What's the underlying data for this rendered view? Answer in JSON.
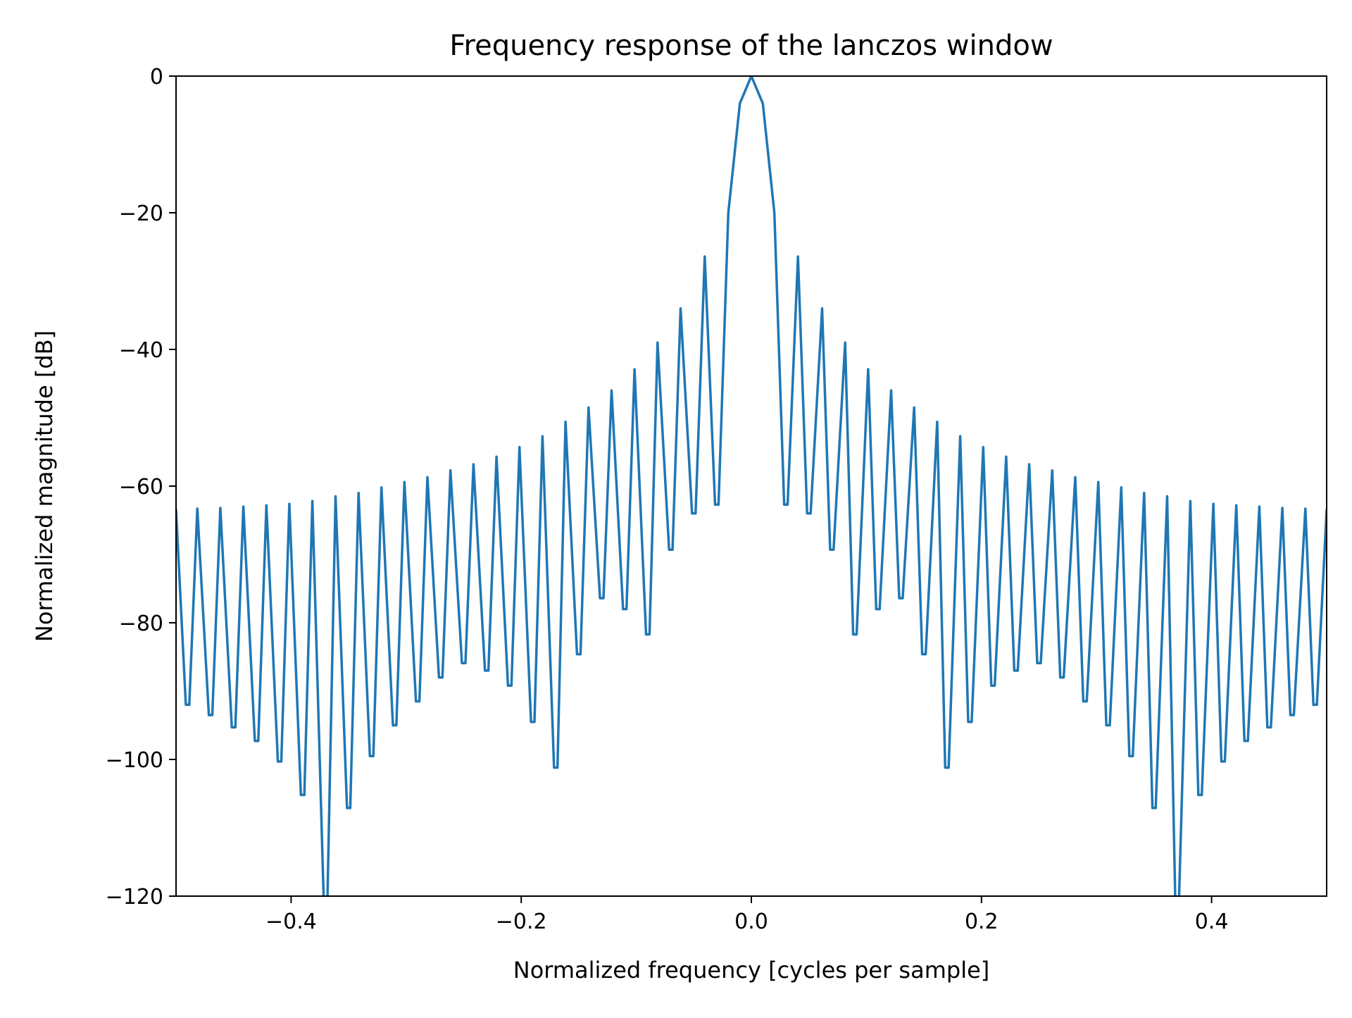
{
  "chart_data": {
    "type": "line",
    "title": "Frequency response of the lanczos window",
    "xlabel": "Normalized frequency [cycles per sample]",
    "ylabel": "Normalized magnitude [dB]",
    "xlim": [
      -0.5,
      0.5
    ],
    "ylim": [
      -120,
      0
    ],
    "xticks": [
      -0.4,
      -0.2,
      0.0,
      0.2,
      0.4
    ],
    "xtick_labels": [
      "−0.4",
      "−0.2",
      "0.0",
      "0.2",
      "0.4"
    ],
    "yticks": [
      0,
      -20,
      -40,
      -60,
      -80,
      -100,
      -120
    ],
    "ytick_labels": [
      "0",
      "−20",
      "−40",
      "−60",
      "−80",
      "−100",
      "−120"
    ],
    "grid": false,
    "line_color": "#1f77b4",
    "series": [
      {
        "x": [
          -0.5,
          -0.4915,
          -0.4885,
          -0.4815,
          -0.4715,
          -0.4685,
          -0.4615,
          -0.4515,
          -0.4485,
          -0.4415,
          -0.4315,
          -0.4285,
          -0.4215,
          -0.4115,
          -0.4085,
          -0.4015,
          -0.3915,
          -0.3885,
          -0.3815,
          -0.3714,
          -0.3686,
          -0.3614,
          -0.3514,
          -0.3486,
          -0.3414,
          -0.3315,
          -0.3285,
          -0.3215,
          -0.3115,
          -0.3085,
          -0.3015,
          -0.2915,
          -0.2885,
          -0.2815,
          -0.2715,
          -0.2685,
          -0.2615,
          -0.2515,
          -0.2485,
          -0.2415,
          -0.2315,
          -0.2285,
          -0.2215,
          -0.2115,
          -0.2085,
          -0.2015,
          -0.1915,
          -0.1885,
          -0.1815,
          -0.1715,
          -0.1685,
          -0.1615,
          -0.1515,
          -0.1485,
          -0.1415,
          -0.1315,
          -0.1285,
          -0.1215,
          -0.1115,
          -0.1085,
          -0.1015,
          -0.0915,
          -0.0885,
          -0.0815,
          -0.0715,
          -0.0685,
          -0.0615,
          -0.0515,
          -0.0485,
          -0.0405,
          -0.0315,
          -0.0285,
          -0.02,
          -0.01,
          0.0,
          0.01,
          0.02,
          0.0285,
          0.0315,
          0.0405,
          0.0485,
          0.0515,
          0.0615,
          0.0685,
          0.0715,
          0.0815,
          0.0885,
          0.0915,
          0.1015,
          0.1085,
          0.1115,
          0.1215,
          0.1285,
          0.1315,
          0.1415,
          0.1485,
          0.1515,
          0.1615,
          0.1685,
          0.1715,
          0.1815,
          0.1885,
          0.1915,
          0.2015,
          0.2085,
          0.2115,
          0.2215,
          0.2285,
          0.2315,
          0.2415,
          0.2485,
          0.2515,
          0.2615,
          0.2685,
          0.2715,
          0.2815,
          0.2885,
          0.2915,
          0.3015,
          0.3085,
          0.3115,
          0.3215,
          0.3285,
          0.3315,
          0.3414,
          0.3486,
          0.3514,
          0.3614,
          0.3686,
          0.3714,
          0.3815,
          0.3885,
          0.3915,
          0.4015,
          0.4085,
          0.4115,
          0.4215,
          0.4285,
          0.4315,
          0.4415,
          0.4485,
          0.4515,
          0.4615,
          0.4685,
          0.4715,
          0.4815,
          0.4885,
          0.4915,
          0.5
        ],
        "y": [
          -63.4,
          -92.0,
          -92.0,
          -63.3,
          -93.5,
          -93.5,
          -63.2,
          -95.3,
          -95.3,
          -63.0,
          -97.3,
          -97.3,
          -62.8,
          -100.3,
          -100.3,
          -62.6,
          -105.2,
          -105.2,
          -62.2,
          -122.0,
          -122.0,
          -61.5,
          -107.1,
          -107.1,
          -61.0,
          -99.5,
          -99.5,
          -60.2,
          -95.0,
          -95.0,
          -59.4,
          -91.5,
          -91.5,
          -58.7,
          -88.0,
          -88.0,
          -57.7,
          -85.9,
          -85.9,
          -56.8,
          -87.0,
          -87.0,
          -55.7,
          -89.2,
          -89.2,
          -54.3,
          -94.5,
          -94.5,
          -52.7,
          -101.2,
          -101.2,
          -50.6,
          -84.6,
          -84.6,
          -48.5,
          -76.4,
          -76.4,
          -46.0,
          -78.0,
          -78.0,
          -42.9,
          -81.7,
          -81.7,
          -39.0,
          -69.3,
          -69.3,
          -34.0,
          -64.0,
          -64.0,
          -26.4,
          -62.7,
          -62.7,
          -20.0,
          -4.0,
          0.0,
          -4.0,
          -20.0,
          -62.7,
          -62.7,
          -26.4,
          -64.0,
          -64.0,
          -34.0,
          -69.3,
          -69.3,
          -39.0,
          -81.7,
          -81.7,
          -42.9,
          -78.0,
          -78.0,
          -46.0,
          -76.4,
          -76.4,
          -48.5,
          -84.6,
          -84.6,
          -50.6,
          -101.2,
          -101.2,
          -52.7,
          -94.5,
          -94.5,
          -54.3,
          -89.2,
          -89.2,
          -55.7,
          -87.0,
          -87.0,
          -56.8,
          -85.9,
          -85.9,
          -57.7,
          -88.0,
          -88.0,
          -58.7,
          -91.5,
          -91.5,
          -59.4,
          -95.0,
          -95.0,
          -60.2,
          -99.5,
          -99.5,
          -61.0,
          -107.1,
          -107.1,
          -61.5,
          -122.0,
          -122.0,
          -62.2,
          -105.2,
          -105.2,
          -62.6,
          -100.3,
          -100.3,
          -62.8,
          -97.3,
          -97.3,
          -63.0,
          -95.3,
          -95.3,
          -63.2,
          -93.5,
          -93.5,
          -63.3,
          -92.0,
          -92.0,
          -63.4
        ]
      }
    ]
  }
}
